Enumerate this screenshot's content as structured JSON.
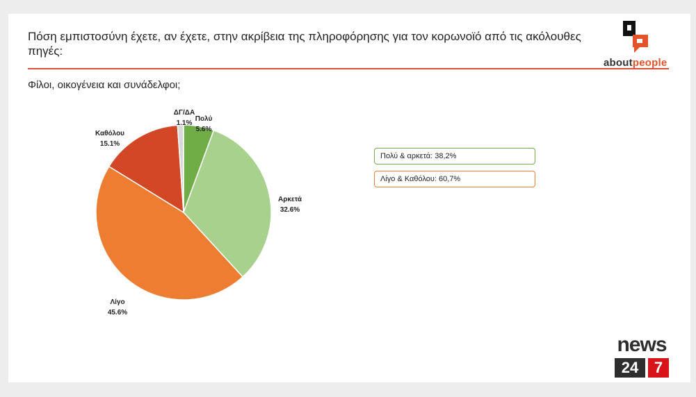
{
  "header": {
    "title": "Πόση εμπιστοσύνη έχετε, αν έχετε, στην ακρίβεια της πληροφόρησης για τον κορωνοϊό από τις ακόλουθες πηγές:",
    "subtitle": "Φίλοι, οικογένεια και συνάδελφοι;"
  },
  "brand": {
    "logo_text_main": "about",
    "logo_text_accent": "people",
    "news_word": "news",
    "news_number": "24",
    "news_seven": "7"
  },
  "chart_data": {
    "type": "pie",
    "slices": [
      {
        "label": "Πολύ",
        "value": 5.6,
        "value_label": "5.6%",
        "color": "#70ad47"
      },
      {
        "label": "Αρκετά",
        "value": 32.6,
        "value_label": "32.6%",
        "color": "#a9d18e"
      },
      {
        "label": "Λίγο",
        "value": 45.6,
        "value_label": "45.6%",
        "color": "#ed7d31"
      },
      {
        "label": "Καθόλου",
        "value": 15.1,
        "value_label": "15.1%",
        "color": "#d24726"
      },
      {
        "label": "ΔΓ/ΔΑ",
        "value": 1.1,
        "value_label": "1.1%",
        "color": "#d9d9d9"
      }
    ],
    "start": "12 o'clock",
    "direction": "clockwise",
    "legend": "none"
  },
  "summary": {
    "box1": "Πολύ & αρκετά: 38,2%",
    "box2": "Λίγο & Καθόλου: 60,7%"
  }
}
